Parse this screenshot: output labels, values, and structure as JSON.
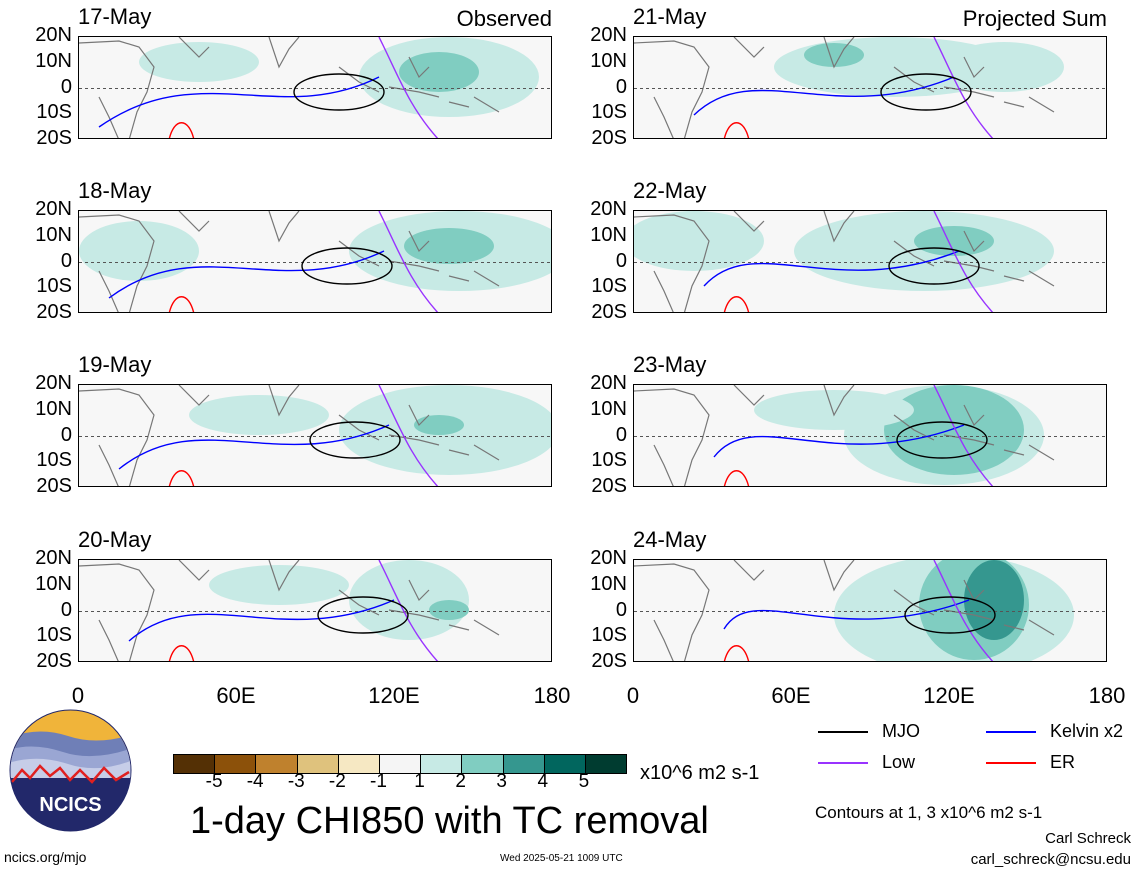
{
  "panels_left": [
    {
      "date": "17-May",
      "tag": "Observed"
    },
    {
      "date": "18-May",
      "tag": ""
    },
    {
      "date": "19-May",
      "tag": ""
    },
    {
      "date": "20-May",
      "tag": ""
    }
  ],
  "panels_right": [
    {
      "date": "21-May",
      "tag": "Projected Sum"
    },
    {
      "date": "22-May",
      "tag": ""
    },
    {
      "date": "23-May",
      "tag": ""
    },
    {
      "date": "24-May",
      "tag": ""
    }
  ],
  "lat_labels": [
    "20N",
    "10N",
    "0",
    "10S",
    "20S"
  ],
  "lon_labels": [
    "0",
    "60E",
    "120E",
    "180"
  ],
  "colorbar": {
    "ticks": [
      "-5",
      "-4",
      "-3",
      "-2",
      "-1",
      "1",
      "2",
      "3",
      "4",
      "5"
    ],
    "colors": [
      "#543005",
      "#8c510a",
      "#bf812d",
      "#dfc27d",
      "#f6e8c3",
      "#f5f5f5",
      "#c7eae5",
      "#80cdc1",
      "#35978f",
      "#01665e",
      "#003c30"
    ],
    "units": "x10^6 m2 s-1"
  },
  "legend": [
    {
      "label": "MJO",
      "color": "#000000"
    },
    {
      "label": "Kelvin x2",
      "color": "#0000ff"
    },
    {
      "label": "Low",
      "color": "#9933ff"
    },
    {
      "label": "ER",
      "color": "#ff0000"
    }
  ],
  "title": "1-day CHI850 with TC removal",
  "contour_note": "Contours at 1, 3 x10^6 m2 s-1",
  "author_name": "Carl Schreck",
  "author_email": "carl_schreck@ncsu.edu",
  "site": "ncics.org/mjo",
  "timestamp": "Wed 2025-05-21 1009 UTC",
  "logo_text": "NCICS"
}
